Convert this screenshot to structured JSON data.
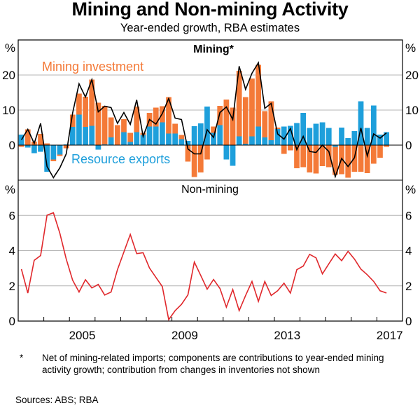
{
  "title": "Mining and Non-mining Activity",
  "subtitle": "Year-ended growth, RBA estimates",
  "footnote_marker": "*",
  "footnote": "Net of mining-related imports; components are contributions to year-ended mining activity growth; contribution from changes in inventories not shown",
  "sources": "Sources: ABS; RBA",
  "colors": {
    "mining_investment": "#F47A38",
    "resource_exports": "#1E9FDB",
    "mining_activity_line": "#000000",
    "non_mining_line": "#E0282C",
    "gridline": "#B4B4B4"
  },
  "chart_data": [
    {
      "type": "bar",
      "panel": "top",
      "title": "Mining*",
      "ylabel": "%",
      "ylim": [
        -10,
        30
      ],
      "yticks": [
        0,
        10,
        20
      ],
      "grid": true,
      "x_frequency": "quarterly",
      "x_start": "2003-Q1",
      "x_end": "2017-Q2",
      "annotations": [
        "Mining investment",
        "Resource exports"
      ],
      "series": [
        {
          "name": "Resource exports",
          "kind": "stacked-bar",
          "values": [
            3.0,
            -0.7,
            -2.3,
            -1.9,
            -7.6,
            -4.1,
            -2.7,
            0.2,
            5.2,
            8.7,
            5.2,
            5.5,
            -1.3,
            0.2,
            2.2,
            0.1,
            3.7,
            0.9,
            3.7,
            2.9,
            5.3,
            5.3,
            6.5,
            3.3,
            3.3,
            1.7,
            1.2,
            5.4,
            6.2,
            11.0,
            3.5,
            5.7,
            -4.1,
            -5.9,
            2.5,
            0.4,
            2.5,
            5.3,
            2.2,
            1.4,
            4.6,
            5.3,
            5.5,
            6.3,
            9.2,
            4.9,
            6.1,
            6.5,
            4.9,
            -0.5,
            5.0,
            2.0,
            4.0,
            12.5,
            4.9,
            11.3,
            3.0,
            3.7
          ]
        },
        {
          "name": "Mining investment",
          "kind": "stacked-bar",
          "values": [
            -0.5,
            4.5,
            1.0,
            3.2,
            0.5,
            -0.5,
            -0.4,
            -0.9,
            3.5,
            6.0,
            8.6,
            13.2,
            12.1,
            11.0,
            5.7,
            5.6,
            3.7,
            2.6,
            7.3,
            0.6,
            3.9,
            5.4,
            4.6,
            10.4,
            2.8,
            1.2,
            -4.7,
            -9.1,
            -7.8,
            -4.1,
            1.8,
            5.5,
            13.0,
            10.7,
            18.7,
            13.3,
            16.5,
            17.6,
            7.5,
            11.1,
            0.4,
            -2.5,
            -1.5,
            -6.6,
            -6.3,
            -7.8,
            -8.1,
            -6.0,
            -6.3,
            -8.0,
            -8.3,
            -9.3,
            -7.6,
            -7.6,
            -8.0,
            -5.3,
            -3.6,
            -0.5
          ]
        },
        {
          "name": "Mining activity",
          "kind": "line",
          "values": [
            1.5,
            4.5,
            0.5,
            6.2,
            -6.1,
            -9.3,
            -6.5,
            -2.5,
            9.2,
            17.5,
            13.7,
            18.7,
            9.5,
            11.1,
            10.7,
            6.2,
            9.3,
            5.9,
            12.9,
            2.5,
            7.3,
            6.0,
            9.0,
            13.3,
            7.7,
            7.3,
            -1.1,
            -2.5,
            -2.5,
            4.4,
            2.2,
            9.3,
            10.9,
            7.3,
            22.5,
            15.9,
            20.5,
            23.5,
            10.5,
            11.9,
            3.2,
            1.7,
            4.7,
            -1.3,
            2.5,
            -1.8,
            -2.1,
            0.0,
            -1.8,
            -9.0,
            -3.8,
            -6.1,
            -3.6,
            4.9,
            -3.1,
            3.2,
            2.0,
            3.5
          ]
        }
      ]
    },
    {
      "type": "line",
      "panel": "bottom",
      "title": "Non-mining",
      "ylabel": "%",
      "ylim": [
        0,
        8
      ],
      "yticks": [
        0,
        2,
        4,
        6
      ],
      "grid": true,
      "x_frequency": "quarterly",
      "x_start": "2003-Q1",
      "x_end": "2017-Q2",
      "xtick_labels": [
        "2005",
        "2009",
        "2013",
        "2017"
      ],
      "x_range_years": [
        2003,
        2018
      ],
      "series": [
        {
          "name": "Non-mining activity",
          "values": [
            2.95,
            1.59,
            3.45,
            3.72,
            6.01,
            6.15,
            4.99,
            3.52,
            2.32,
            1.65,
            2.35,
            1.88,
            2.08,
            1.48,
            1.65,
            2.92,
            3.92,
            4.92,
            3.83,
            3.88,
            3.01,
            2.48,
            1.96,
            0.08,
            0.59,
            0.95,
            1.49,
            3.35,
            2.59,
            1.81,
            2.36,
            1.85,
            0.79,
            1.79,
            0.59,
            1.45,
            2.25,
            1.12,
            2.25,
            1.45,
            1.72,
            2.15,
            1.59,
            2.92,
            3.12,
            3.79,
            3.59,
            2.68,
            3.25,
            3.81,
            3.43,
            3.96,
            3.52,
            2.95,
            2.63,
            2.25,
            1.72,
            1.59
          ]
        }
      ]
    }
  ]
}
